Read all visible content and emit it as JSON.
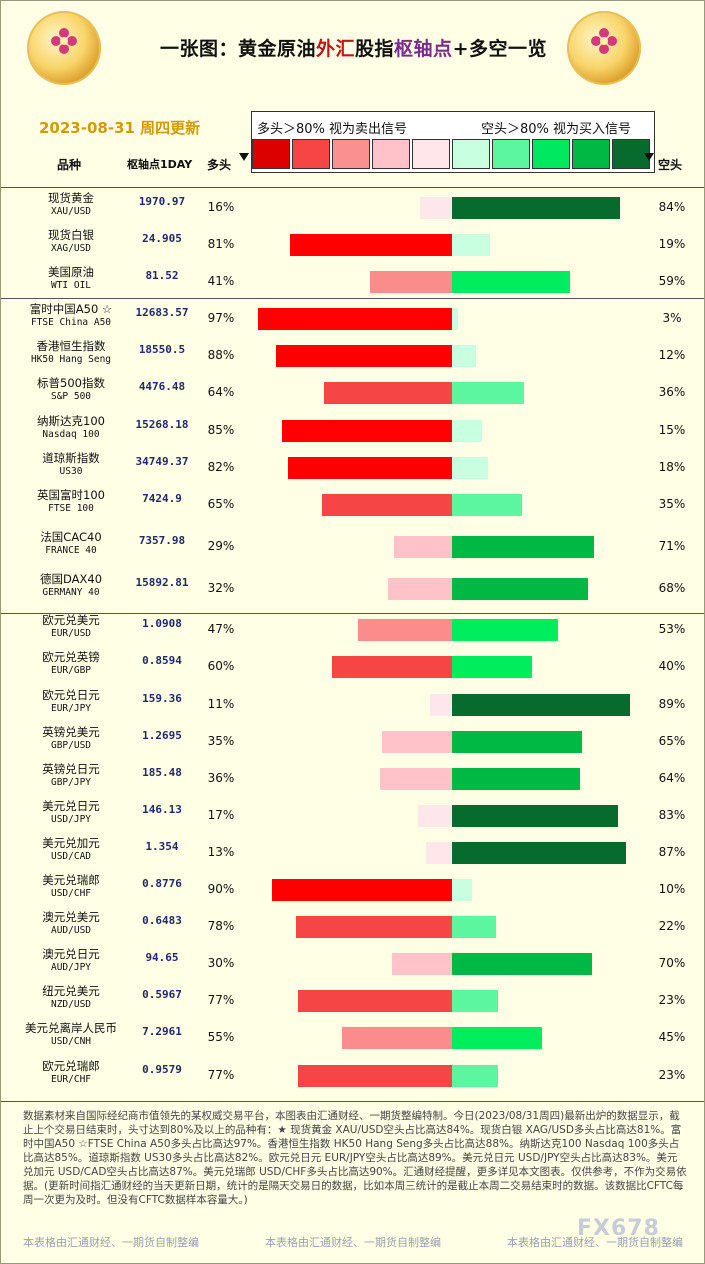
{
  "title": {
    "p1": "一张图：黄金原油",
    "p2": "外汇",
    "p3": "股指",
    "p4": "枢轴点",
    "p5": "+多空一览"
  },
  "date_label": "2023-08-31 周四更新",
  "legend": {
    "left": "多头＞80% 视为卖出信号",
    "right": "空头＞80% 视为买入信号"
  },
  "scale_colors": [
    "#dd0000",
    "#f54545",
    "#fa9090",
    "#ffc2c8",
    "#ffe6ea",
    "#c8ffe0",
    "#5cf5a0",
    "#00e860",
    "#00b844",
    "#076b2d"
  ],
  "headers": {
    "name": "品种",
    "pivot": "枢轴点1DAY",
    "long": "多头",
    "short": "空头"
  },
  "chart_data": {
    "type": "bar",
    "layout": "diverging horizontal",
    "series": [
      {
        "name": "多头",
        "values": [
          16,
          81,
          41,
          97,
          88,
          64,
          85,
          82,
          65,
          29,
          32,
          47,
          60,
          11,
          35,
          36,
          17,
          13,
          90,
          78,
          30,
          77,
          55,
          77
        ]
      },
      {
        "name": "空头",
        "values": [
          84,
          19,
          59,
          3,
          12,
          36,
          15,
          18,
          35,
          71,
          68,
          53,
          40,
          89,
          65,
          64,
          83,
          87,
          10,
          22,
          70,
          23,
          45,
          23
        ]
      }
    ],
    "rows": [
      {
        "name": "现货黄金",
        "code": "XAU/USD",
        "pivot": "1970.97",
        "long": 16,
        "short": 84,
        "long_label": "16%",
        "short_label": "84%"
      },
      {
        "name": "现货白银",
        "code": "XAG/USD",
        "pivot": "24.905",
        "long": 81,
        "short": 19,
        "long_label": "81%",
        "short_label": "19%"
      },
      {
        "name": "美国原油",
        "code": "WTI OIL",
        "pivot": "81.52",
        "long": 41,
        "short": 59,
        "long_label": "41%",
        "short_label": "59%"
      },
      {
        "name": "富时中国A50 ☆",
        "code": "FTSE China A50",
        "pivot": "12683.57",
        "long": 97,
        "short": 3,
        "long_label": "97%",
        "short_label": "3%"
      },
      {
        "name": "香港恒生指数",
        "code": "HK50 Hang Seng",
        "pivot": "18550.5",
        "long": 88,
        "short": 12,
        "long_label": "88%",
        "short_label": "12%"
      },
      {
        "name": "标普500指数",
        "code": "S&P 500",
        "pivot": "4476.48",
        "long": 64,
        "short": 36,
        "long_label": "64%",
        "short_label": "36%"
      },
      {
        "name": "纳斯达克100",
        "code": "Nasdaq 100",
        "pivot": "15268.18",
        "long": 85,
        "short": 15,
        "long_label": "85%",
        "short_label": "15%"
      },
      {
        "name": "道琼斯指数",
        "code": "US30",
        "pivot": "34749.37",
        "long": 82,
        "short": 18,
        "long_label": "82%",
        "short_label": "18%"
      },
      {
        "name": "英国富时100",
        "code": "FTSE 100",
        "pivot": "7424.9",
        "long": 65,
        "short": 35,
        "long_label": "65%",
        "short_label": "35%"
      },
      {
        "name": "法国CAC40",
        "code": "FRANCE 40",
        "pivot": "7357.98",
        "long": 29,
        "short": 71,
        "long_label": "29%",
        "short_label": "71%"
      },
      {
        "name": "德国DAX40",
        "code": "GERMANY 40",
        "pivot": "15892.81",
        "long": 32,
        "short": 68,
        "long_label": "32%",
        "short_label": "68%"
      },
      {
        "name": "欧元兑美元",
        "code": "EUR/USD",
        "pivot": "1.0908",
        "long": 47,
        "short": 53,
        "long_label": "47%",
        "short_label": "53%"
      },
      {
        "name": "欧元兑英镑",
        "code": "EUR/GBP",
        "pivot": "0.8594",
        "long": 60,
        "short": 40,
        "long_label": "60%",
        "short_label": "40%"
      },
      {
        "name": "欧元兑日元",
        "code": "EUR/JPY",
        "pivot": "159.36",
        "long": 11,
        "short": 89,
        "long_label": "11%",
        "short_label": "89%"
      },
      {
        "name": "英镑兑美元",
        "code": "GBP/USD",
        "pivot": "1.2695",
        "long": 35,
        "short": 65,
        "long_label": "35%",
        "short_label": "65%"
      },
      {
        "name": "英镑兑日元",
        "code": "GBP/JPY",
        "pivot": "185.48",
        "long": 36,
        "short": 64,
        "long_label": "36%",
        "short_label": "64%"
      },
      {
        "name": "美元兑日元",
        "code": "USD/JPY",
        "pivot": "146.13",
        "long": 17,
        "short": 83,
        "long_label": "17%",
        "short_label": "83%"
      },
      {
        "name": "美元兑加元",
        "code": "USD/CAD",
        "pivot": "1.354",
        "long": 13,
        "short": 87,
        "long_label": "13%",
        "short_label": "87%"
      },
      {
        "name": "美元兑瑞郎",
        "code": "USD/CHF",
        "pivot": "0.8776",
        "long": 90,
        "short": 10,
        "long_label": "90%",
        "short_label": "10%"
      },
      {
        "name": "澳元兑美元",
        "code": "AUD/USD",
        "pivot": "0.6483",
        "long": 78,
        "short": 22,
        "long_label": "78%",
        "short_label": "22%"
      },
      {
        "name": "澳元兑日元",
        "code": "AUD/JPY",
        "pivot": "94.65",
        "long": 30,
        "short": 70,
        "long_label": "30%",
        "short_label": "70%"
      },
      {
        "name": "纽元兑美元",
        "code": "NZD/USD",
        "pivot": "0.5967",
        "long": 77,
        "short": 23,
        "long_label": "77%",
        "short_label": "23%"
      },
      {
        "name": "美元兑离岸人民币",
        "code": "USD/CNH",
        "pivot": "7.2961",
        "long": 55,
        "short": 45,
        "long_label": "55%",
        "short_label": "45%"
      },
      {
        "name": "欧元兑瑞郎",
        "code": "EUR/CHF",
        "pivot": "0.9579",
        "long": 77,
        "short": 23,
        "long_label": "77%",
        "short_label": "23%"
      }
    ]
  },
  "note": "数据素材来自国际经纪商市值领先的某权威交易平台，本图表由汇通财经、一期货整编特制。今日(2023/08/31周四)最新出炉的数据显示，截止上个交易日结束时，头寸达到80%及以上的品种有：★ 现货黄金 XAU/USD空头占比高达84%。现货白银 XAG/USD多头占比高达81%。富时中国A50 ☆FTSE China A50多头占比高达97%。香港恒生指数 HK50 Hang Seng多头占比高达88%。纳斯达克100 Nasdaq 100多头占比高达85%。道琼斯指数 US30多头占比高达82%。欧元兑日元 EUR/JPY空头占比高达89%。美元兑日元 USD/JPY空头占比高达83%。美元兑加元 USD/CAD空头占比高达87%。美元兑瑞郎 USD/CHF多头占比高达90%。汇通财经提醒，更多详见本文图表。仅供参考，不作为交易依据。(更新时间指汇通财经的当天更新日期，统计的是隔天交易日的数据，比如本周三统计的是截止本周二交易结束时的数据。该数据比CFTC每周一次更为及时。但没有CFTC数据样本容量大。)",
  "footer": "本表格由汇通财经、一期货自制整编",
  "brand": "FX678"
}
